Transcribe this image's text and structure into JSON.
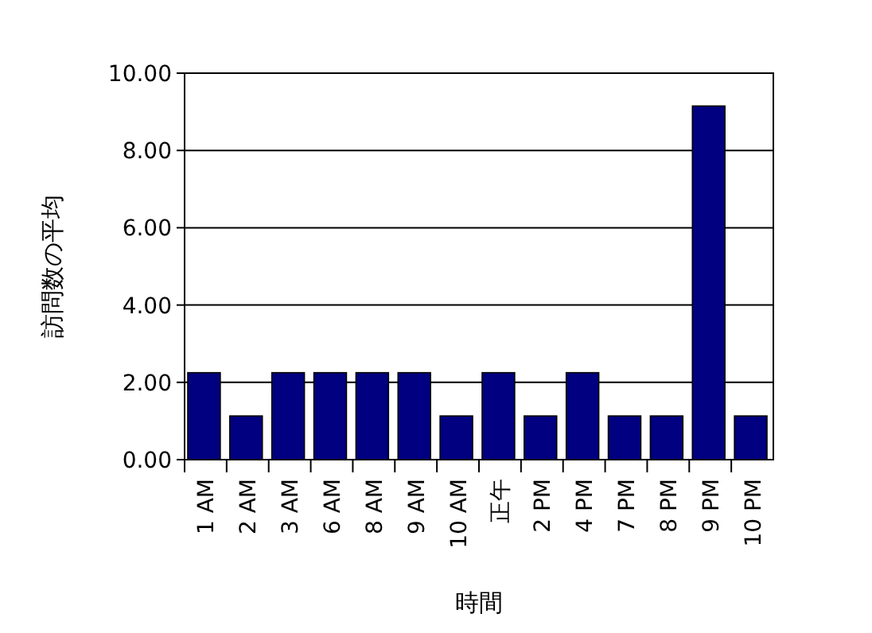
{
  "chart_data": {
    "type": "bar",
    "ylabel": "訪問数の平均",
    "xlabel": "時間",
    "categories": [
      "1 AM",
      "2 AM",
      "3 AM",
      "6 AM",
      "8 AM",
      "9 AM",
      "10 AM",
      "正午",
      "2 PM",
      "4 PM",
      "7 PM",
      "8 PM",
      "9 PM",
      "10 PM"
    ],
    "values": [
      2.25,
      1.13,
      2.25,
      2.25,
      2.25,
      2.25,
      1.13,
      2.25,
      1.13,
      2.25,
      1.13,
      1.13,
      9.15,
      1.13
    ],
    "color": "#000080",
    "ylim": [
      0,
      10
    ],
    "yticks": [
      {
        "value": 0,
        "label": "0.00"
      },
      {
        "value": 2,
        "label": "2.00"
      },
      {
        "value": 4,
        "label": "4.00"
      },
      {
        "value": 6,
        "label": "6.00"
      },
      {
        "value": 8,
        "label": "8.00"
      },
      {
        "value": 10,
        "label": "10.00"
      }
    ],
    "grid": "y"
  }
}
